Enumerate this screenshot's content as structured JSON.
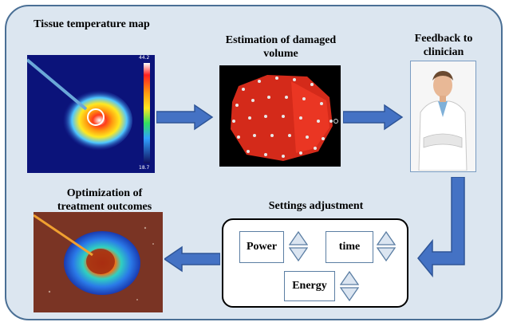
{
  "labels": {
    "tissue_map": "Tissue temperature map",
    "damaged_volume": "Estimation of damaged volume",
    "feedback": "Feedback to clinician",
    "settings_title": "Settings adjustment",
    "optimization": "Optimization of treatment outcomes"
  },
  "thermal_scale": {
    "max": "44.2",
    "min": "18.7"
  },
  "settings": {
    "power": "Power",
    "time": "time",
    "energy": "Energy"
  },
  "colors": {
    "panel_fill": "#dce6f0",
    "panel_border": "#4a6f95",
    "arrow": "#4472c4",
    "arrow_dark": "#2e5597"
  }
}
